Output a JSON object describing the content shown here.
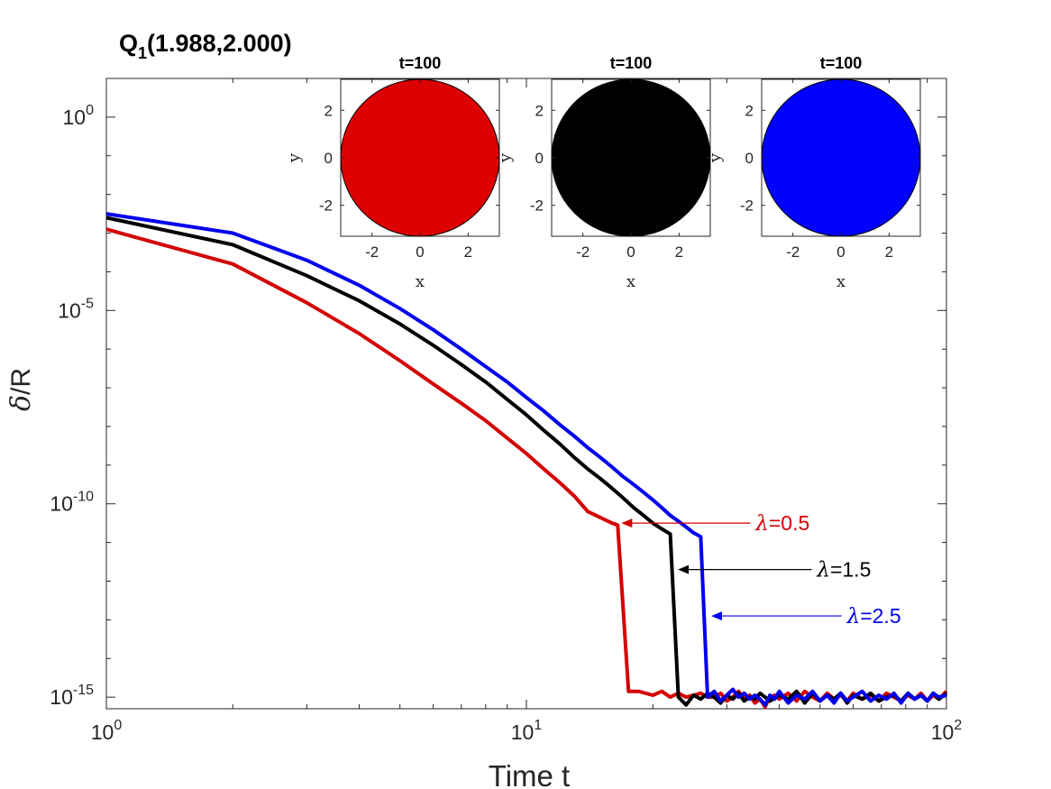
{
  "chart_data": {
    "type": "line",
    "title": "Q",
    "title_subscript": "1",
    "title_suffix": "(1.988,2.000)",
    "xlabel": "Time t",
    "ylabel_symbol": "δ",
    "ylabel_suffix": "/R",
    "xscale": "log",
    "yscale": "log",
    "xlim": [
      1,
      100
    ],
    "ylim_exp": [
      -15.3,
      1
    ],
    "x_ticks": [
      {
        "base": "10",
        "exp": "0"
      },
      {
        "base": "10",
        "exp": "1"
      },
      {
        "base": "10",
        "exp": "2"
      }
    ],
    "y_ticks": [
      {
        "base": "10",
        "exp": "0",
        "value_exp": 0
      },
      {
        "base": "10",
        "exp": "-5",
        "value_exp": -5
      },
      {
        "base": "10",
        "exp": "-10",
        "value_exp": -10
      },
      {
        "base": "10",
        "exp": "-15",
        "value_exp": -15
      }
    ],
    "series": [
      {
        "name": "λ=0.5",
        "color": "#d40000",
        "annotation": {
          "symbol": "λ",
          "text": "=0.5",
          "arrow_to": [
            16.5,
            -10.5
          ],
          "text_at": [
            20,
            -10.8
          ]
        },
        "points": [
          [
            1,
            -2.9
          ],
          [
            2,
            -3.8
          ],
          [
            3,
            -4.8
          ],
          [
            4,
            -5.6
          ],
          [
            5,
            -6.3
          ],
          [
            6,
            -6.9
          ],
          [
            7,
            -7.4
          ],
          [
            8,
            -7.85
          ],
          [
            9,
            -8.3
          ],
          [
            10,
            -8.7
          ],
          [
            11,
            -9.1
          ],
          [
            12,
            -9.45
          ],
          [
            13,
            -9.8
          ],
          [
            14,
            -10.2
          ],
          [
            16,
            -10.5
          ],
          [
            16.5,
            -10.55
          ],
          [
            17.5,
            -14.85
          ],
          [
            18.5,
            -14.85
          ],
          [
            20,
            -14.95
          ],
          [
            21,
            -14.85
          ],
          [
            22,
            -15.0
          ],
          [
            23,
            -14.9
          ],
          [
            24,
            -15.0
          ],
          [
            25,
            -14.95
          ],
          [
            26,
            -14.9
          ],
          [
            27,
            -15.0
          ],
          [
            28,
            -15.0
          ],
          [
            29,
            -14.9
          ],
          [
            30,
            -15.1
          ],
          [
            31,
            -15.0
          ],
          [
            32,
            -14.85
          ],
          [
            33,
            -15.05
          ],
          [
            34,
            -14.95
          ],
          [
            35,
            -15.15
          ],
          [
            36,
            -15.05
          ],
          [
            37,
            -15.25
          ],
          [
            38,
            -15.0
          ],
          [
            39,
            -14.95
          ],
          [
            40,
            -15.05
          ],
          [
            42,
            -14.9
          ],
          [
            44,
            -15.1
          ],
          [
            46,
            -14.85
          ],
          [
            48,
            -15.0
          ],
          [
            50,
            -15.1
          ],
          [
            52,
            -14.9
          ],
          [
            54,
            -15.05
          ],
          [
            56,
            -14.95
          ],
          [
            58,
            -15.1
          ],
          [
            60,
            -14.9
          ],
          [
            63,
            -15.05
          ],
          [
            66,
            -14.95
          ],
          [
            69,
            -15.1
          ],
          [
            72,
            -14.9
          ],
          [
            75,
            -15.0
          ],
          [
            78,
            -15.1
          ],
          [
            81,
            -14.95
          ],
          [
            84,
            -15.05
          ],
          [
            87,
            -14.9
          ],
          [
            90,
            -15.1
          ],
          [
            93,
            -14.95
          ],
          [
            96,
            -15.05
          ],
          [
            100,
            -14.85
          ]
        ]
      },
      {
        "name": "λ=1.5",
        "color": "#000000",
        "annotation": {
          "symbol": "λ",
          "text": "=1.5",
          "arrow_to": [
            22.5,
            -11.7
          ],
          "text_at": [
            28,
            -11.9
          ]
        },
        "points": [
          [
            1,
            -2.6
          ],
          [
            2,
            -3.3
          ],
          [
            3,
            -4.1
          ],
          [
            4,
            -4.75
          ],
          [
            5,
            -5.35
          ],
          [
            6,
            -5.9
          ],
          [
            7,
            -6.4
          ],
          [
            8,
            -6.85
          ],
          [
            9,
            -7.3
          ],
          [
            10,
            -7.7
          ],
          [
            11,
            -8.1
          ],
          [
            12,
            -8.45
          ],
          [
            13,
            -8.8
          ],
          [
            14,
            -9.1
          ],
          [
            15,
            -9.35
          ],
          [
            16,
            -9.6
          ],
          [
            17,
            -9.85
          ],
          [
            18,
            -10.1
          ],
          [
            19,
            -10.3
          ],
          [
            20,
            -10.5
          ],
          [
            21,
            -10.65
          ],
          [
            22,
            -10.78
          ],
          [
            23,
            -15.0
          ],
          [
            24,
            -15.2
          ],
          [
            25,
            -14.95
          ],
          [
            26,
            -15.05
          ],
          [
            27,
            -14.9
          ],
          [
            28,
            -15.0
          ],
          [
            29,
            -15.15
          ],
          [
            30,
            -14.95
          ],
          [
            31,
            -15.05
          ],
          [
            32,
            -14.9
          ],
          [
            33,
            -15.1
          ],
          [
            34,
            -15.0
          ],
          [
            35,
            -15.05
          ],
          [
            36,
            -14.9
          ],
          [
            38,
            -15.1
          ],
          [
            40,
            -14.95
          ],
          [
            42,
            -15.05
          ],
          [
            44,
            -14.85
          ],
          [
            46,
            -15.15
          ],
          [
            48,
            -14.9
          ],
          [
            50,
            -15.1
          ],
          [
            52,
            -14.95
          ],
          [
            54,
            -15.05
          ],
          [
            56,
            -14.9
          ],
          [
            58,
            -15.15
          ],
          [
            60,
            -14.95
          ],
          [
            63,
            -15.05
          ],
          [
            66,
            -14.9
          ],
          [
            69,
            -15.1
          ],
          [
            72,
            -15.0
          ],
          [
            75,
            -14.95
          ],
          [
            78,
            -15.1
          ],
          [
            81,
            -14.9
          ],
          [
            84,
            -15.05
          ],
          [
            87,
            -14.95
          ],
          [
            90,
            -15.1
          ],
          [
            93,
            -14.9
          ],
          [
            96,
            -15.05
          ],
          [
            100,
            -14.9
          ]
        ]
      },
      {
        "name": "λ=2.5",
        "color": "#0000ee",
        "annotation": {
          "symbol": "λ",
          "text": "=2.5",
          "arrow_to": [
            27,
            -12.9
          ],
          "text_at": [
            33,
            -13.1
          ]
        },
        "points": [
          [
            1,
            -2.5
          ],
          [
            2,
            -3.0
          ],
          [
            3,
            -3.7
          ],
          [
            4,
            -4.35
          ],
          [
            5,
            -4.95
          ],
          [
            6,
            -5.5
          ],
          [
            7,
            -6.0
          ],
          [
            8,
            -6.45
          ],
          [
            9,
            -6.85
          ],
          [
            10,
            -7.25
          ],
          [
            11,
            -7.6
          ],
          [
            12,
            -7.95
          ],
          [
            13,
            -8.25
          ],
          [
            14,
            -8.55
          ],
          [
            15,
            -8.8
          ],
          [
            16,
            -9.05
          ],
          [
            17,
            -9.3
          ],
          [
            18,
            -9.5
          ],
          [
            19,
            -9.7
          ],
          [
            20,
            -9.9
          ],
          [
            21,
            -10.1
          ],
          [
            22,
            -10.3
          ],
          [
            23,
            -10.45
          ],
          [
            24,
            -10.6
          ],
          [
            25,
            -10.75
          ],
          [
            26,
            -10.85
          ],
          [
            27,
            -15.0
          ],
          [
            28,
            -14.85
          ],
          [
            29,
            -15.1
          ],
          [
            30,
            -14.95
          ],
          [
            31,
            -14.8
          ],
          [
            32,
            -15.0
          ],
          [
            33,
            -14.9
          ],
          [
            34,
            -15.05
          ],
          [
            35,
            -14.95
          ],
          [
            36,
            -15.05
          ],
          [
            37,
            -15.2
          ],
          [
            38,
            -14.95
          ],
          [
            39,
            -15.05
          ],
          [
            40,
            -14.85
          ],
          [
            42,
            -15.15
          ],
          [
            44,
            -14.95
          ],
          [
            46,
            -15.05
          ],
          [
            48,
            -14.85
          ],
          [
            50,
            -15.1
          ],
          [
            52,
            -14.95
          ],
          [
            54,
            -15.15
          ],
          [
            56,
            -14.9
          ],
          [
            58,
            -15.1
          ],
          [
            60,
            -15.0
          ],
          [
            63,
            -14.85
          ],
          [
            66,
            -15.1
          ],
          [
            69,
            -14.95
          ],
          [
            72,
            -15.05
          ],
          [
            75,
            -14.9
          ],
          [
            78,
            -15.15
          ],
          [
            81,
            -14.9
          ],
          [
            84,
            -15.05
          ],
          [
            87,
            -14.95
          ],
          [
            90,
            -15.1
          ],
          [
            93,
            -14.9
          ],
          [
            96,
            -15.0
          ],
          [
            100,
            -14.95
          ]
        ]
      }
    ],
    "insets": [
      {
        "title": "t=100",
        "color": "#dd0000",
        "xlabel": "x",
        "ylabel": "y",
        "xlim": [
          -3.3,
          3.3
        ],
        "ylim": [
          -3.3,
          3.3
        ],
        "radius": 3.3,
        "ticks": [
          -2,
          0,
          2
        ],
        "tick_labels": [
          "-2",
          "0",
          "2"
        ]
      },
      {
        "title": "t=100",
        "color": "#000000",
        "xlabel": "x",
        "ylabel": "y",
        "xlim": [
          -3.3,
          3.3
        ],
        "ylim": [
          -3.3,
          3.3
        ],
        "radius": 3.3,
        "ticks": [
          -2,
          0,
          2
        ],
        "tick_labels": [
          "-2",
          "0",
          "2"
        ]
      },
      {
        "title": "t=100",
        "color": "#0000ff",
        "xlabel": "x",
        "ylabel": "y",
        "xlim": [
          -3.3,
          3.3
        ],
        "ylim": [
          -3.3,
          3.3
        ],
        "radius": 3.3,
        "ticks": [
          -2,
          0,
          2
        ],
        "tick_labels": [
          "-2",
          "0",
          "2"
        ]
      }
    ]
  }
}
